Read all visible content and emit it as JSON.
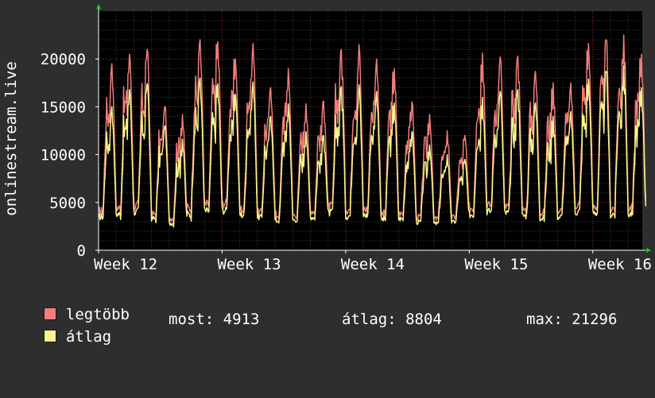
{
  "colors": {
    "background": "#2e2e2e",
    "plot_background": "#000000",
    "grid_minor": "#3a3a3a",
    "grid_major": "#8a2a2a",
    "axis": "#ffffff",
    "max_series": "#f27d7d",
    "avg_series": "#f8f48c",
    "arrow": "#22cc22"
  },
  "chart_data": {
    "type": "line",
    "ylabel": "onlinestream.live",
    "ylim": [
      0,
      25000
    ],
    "yticks": [
      0,
      5000,
      10000,
      15000,
      20000
    ],
    "xlim": [
      0,
      4.4
    ],
    "xticks": [
      {
        "value": 0,
        "label": "Week 12"
      },
      {
        "value": 1,
        "label": "Week 13"
      },
      {
        "value": 2,
        "label": "Week 14"
      },
      {
        "value": 3,
        "label": "Week 15"
      },
      {
        "value": 4,
        "label": "Week 16"
      }
    ],
    "grid": true,
    "legend_position": "bottom-left",
    "daily_peaks": {
      "legtobb": [
        19500,
        20500,
        21000,
        15000,
        14200,
        22000,
        21800,
        20000,
        21600,
        17000,
        19000,
        15300,
        15600,
        21000,
        21500,
        20000,
        19000,
        15500,
        14200,
        12500,
        12000,
        20600,
        20200,
        20300,
        18700,
        17500,
        17500,
        21600,
        22000,
        22500,
        20500
      ],
      "atlag": [
        15000,
        16800,
        17400,
        13000,
        11600,
        18000,
        17400,
        16300,
        17600,
        14000,
        15300,
        12400,
        12000,
        17100,
        17300,
        16600,
        15400,
        12400,
        11000,
        10000,
        9500,
        16000,
        16600,
        16800,
        15400,
        14000,
        14500,
        17900,
        18700,
        19300,
        17000
      ]
    },
    "daily_troughs": {
      "legtobb": [
        3300,
        3600,
        3800,
        3200,
        2800,
        3500,
        3900,
        4100,
        3400,
        3300,
        2900,
        3100,
        3500,
        3700,
        3400,
        3500,
        3000,
        3200,
        2900,
        2800,
        3000,
        3600,
        3900,
        3700,
        3500,
        3200,
        3400,
        3900,
        3700,
        3500,
        3600
      ],
      "atlag": [
        2900,
        3100,
        3300,
        2800,
        2400,
        3000,
        3400,
        3500,
        3000,
        2900,
        2500,
        2700,
        3000,
        3200,
        2900,
        3000,
        2600,
        2800,
        2500,
        2400,
        2600,
        3100,
        3400,
        3200,
        3000,
        2800,
        2900,
        3300,
        3200,
        3000,
        3100
      ]
    },
    "series": [
      {
        "name": "legtöbb",
        "color": "#f27d7d"
      },
      {
        "name": "átlag",
        "color": "#f8f48c"
      }
    ]
  },
  "legend": {
    "max_label": "legtöbb",
    "avg_label": "átlag",
    "now_text": "most: 4913",
    "avg_text": "átlag: 8804",
    "max_text": "max: 21296"
  }
}
